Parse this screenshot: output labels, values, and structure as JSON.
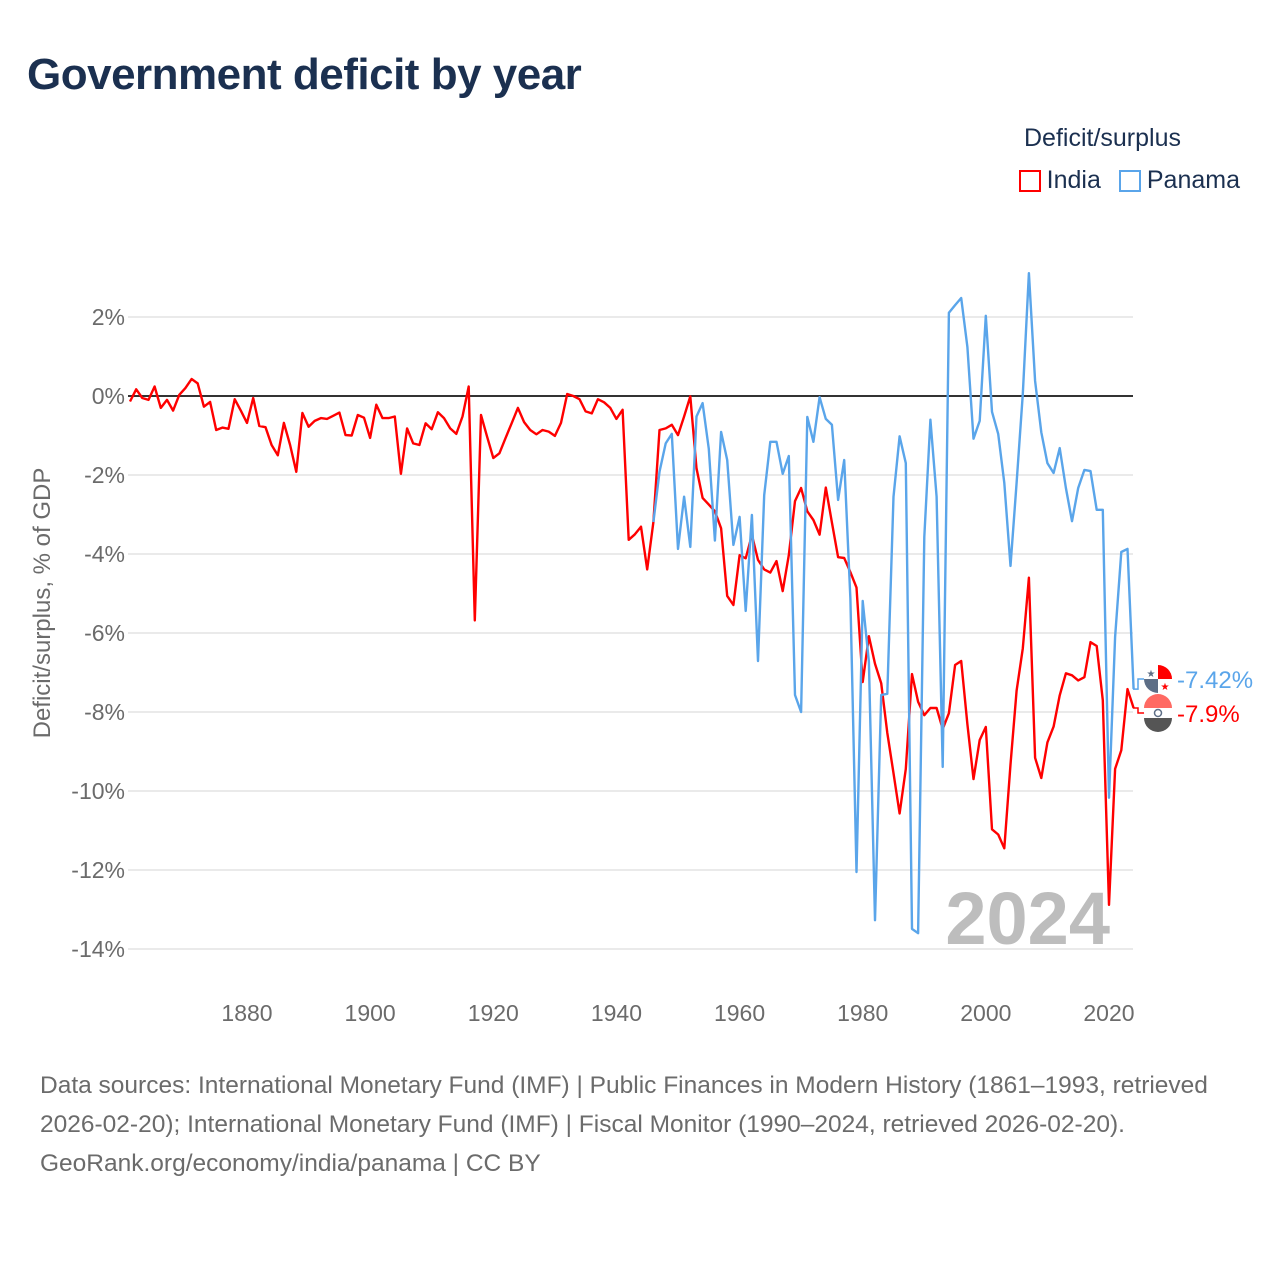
{
  "title": "Government deficit by year",
  "legend": {
    "title": "Deficit/surplus",
    "items": [
      {
        "name": "India",
        "color": "#ff0000"
      },
      {
        "name": "Panama",
        "color": "#5aa5ea"
      }
    ]
  },
  "watermark_year": "2024",
  "footer": {
    "sources": "Data sources: International Monetary Fund (IMF) | Public Finances in Modern History (1861–1993, retrieved 2026-02-20); International Monetary Fund (IMF) | Fiscal Monitor (1990–2024, retrieved 2026-02-20).",
    "credit": "GeoRank.org/economy/india/panama | CC BY"
  },
  "chart_data": {
    "type": "line",
    "title": "Government deficit by year",
    "xlabel": "",
    "ylabel": "Deficit/surplus, % of GDP",
    "xlim": [
      1861,
      2024
    ],
    "ylim": [
      -14.5,
      3.2
    ],
    "x_ticks": [
      1880,
      1900,
      1920,
      1940,
      1960,
      1980,
      2000,
      2020
    ],
    "y_ticks": [
      2,
      0,
      -2,
      -4,
      -6,
      -8,
      -10,
      -12,
      -14
    ],
    "y_tick_labels": [
      "2%",
      "0%",
      "-2%",
      "-4%",
      "-6%",
      "-8%",
      "-10%",
      "-12%",
      "-14%"
    ],
    "grid": true,
    "legend_position": "top-right",
    "series": [
      {
        "name": "India",
        "color": "#ff0000",
        "start_year": 1861,
        "end_label": "-7.9%",
        "values": [
          -0.14,
          0.17,
          -0.05,
          -0.1,
          0.24,
          -0.3,
          -0.1,
          -0.37,
          0.03,
          0.2,
          0.43,
          0.32,
          -0.27,
          -0.15,
          -0.86,
          -0.8,
          -0.83,
          -0.08,
          -0.37,
          -0.68,
          -0.05,
          -0.76,
          -0.79,
          -1.24,
          -1.5,
          -0.68,
          -1.24,
          -1.92,
          -0.43,
          -0.78,
          -0.63,
          -0.56,
          -0.58,
          -0.5,
          -0.42,
          -0.99,
          -1.0,
          -0.48,
          -0.55,
          -1.06,
          -0.22,
          -0.56,
          -0.56,
          -0.52,
          -1.97,
          -0.82,
          -1.2,
          -1.24,
          -0.69,
          -0.84,
          -0.41,
          -0.56,
          -0.82,
          -0.96,
          -0.52,
          0.24,
          -5.68,
          -0.48,
          -1.03,
          -1.57,
          -1.45,
          -1.06,
          -0.68,
          -0.3,
          -0.66,
          -0.86,
          -0.97,
          -0.86,
          -0.9,
          -1.01,
          -0.68,
          0.05,
          0,
          -0.08,
          -0.39,
          -0.44,
          -0.08,
          -0.16,
          -0.3,
          -0.58,
          -0.35,
          -3.64,
          -3.5,
          -3.31,
          -4.39,
          -3.19,
          -0.86,
          -0.82,
          -0.73,
          -0.99,
          -0.52,
          -0.01,
          -1.83,
          -2.58,
          -2.75,
          -2.92,
          -3.35,
          -5.06,
          -5.29,
          -4.03,
          -4.11,
          -3.52,
          -4.15,
          -4.39,
          -4.47,
          -4.18,
          -4.94,
          -4.03,
          -2.66,
          -2.33,
          -2.92,
          -3.14,
          -3.51,
          -2.32,
          -3.2,
          -4.08,
          -4.1,
          -4.46,
          -4.85,
          -7.24,
          -6.08,
          -6.78,
          -7.27,
          -8.53,
          -9.55,
          -10.57,
          -9.44,
          -7.04,
          -7.74,
          -8.08,
          -7.9,
          -7.9,
          -8.43,
          -8.03,
          -6.81,
          -6.71,
          -8.31,
          -9.7,
          -8.71,
          -8.38,
          -10.97,
          -11.1,
          -11.45,
          -9.33,
          -7.46,
          -6.39,
          -4.6,
          -9.16,
          -9.67,
          -8.77,
          -8.37,
          -7.58,
          -7.02,
          -7.07,
          -7.2,
          -7.12,
          -6.23,
          -6.33,
          -7.7,
          -12.88,
          -9.44,
          -8.97,
          -7.42,
          -7.9
        ]
      },
      {
        "name": "Panama",
        "color": "#5aa5ea",
        "start_year": 1946,
        "end_label": "-7.42%",
        "values": [
          -3.19,
          -1.92,
          -1.2,
          -0.96,
          -3.87,
          -2.55,
          -3.82,
          -0.52,
          -0.18,
          -1.34,
          -3.66,
          -0.91,
          -1.62,
          -3.77,
          -3.06,
          -5.44,
          -3.01,
          -6.71,
          -2.51,
          -1.16,
          -1.16,
          -1.97,
          -1.52,
          -7.57,
          -8.0,
          -0.53,
          -1.16,
          -0.03,
          -0.58,
          -0.73,
          -2.63,
          -1.62,
          -5.14,
          -12.05,
          -5.19,
          -6.73,
          -13.27,
          -7.57,
          -7.54,
          -2.55,
          -1.02,
          -1.7,
          -13.49,
          -13.6,
          -3.57,
          -0.6,
          -2.55,
          -9.39,
          2.11,
          2.3,
          2.48,
          1.24,
          -1.08,
          -0.63,
          2.03,
          -0.4,
          -0.96,
          -2.2,
          -4.3,
          -2.2,
          0.05,
          3.11,
          0.38,
          -0.92,
          -1.7,
          -1.95,
          -1.32,
          -2.33,
          -3.17,
          -2.33,
          -1.87,
          -1.9,
          -2.88,
          -2.88,
          -10.17,
          -6.1,
          -3.95,
          -3.87,
          -7.42
        ]
      }
    ]
  }
}
